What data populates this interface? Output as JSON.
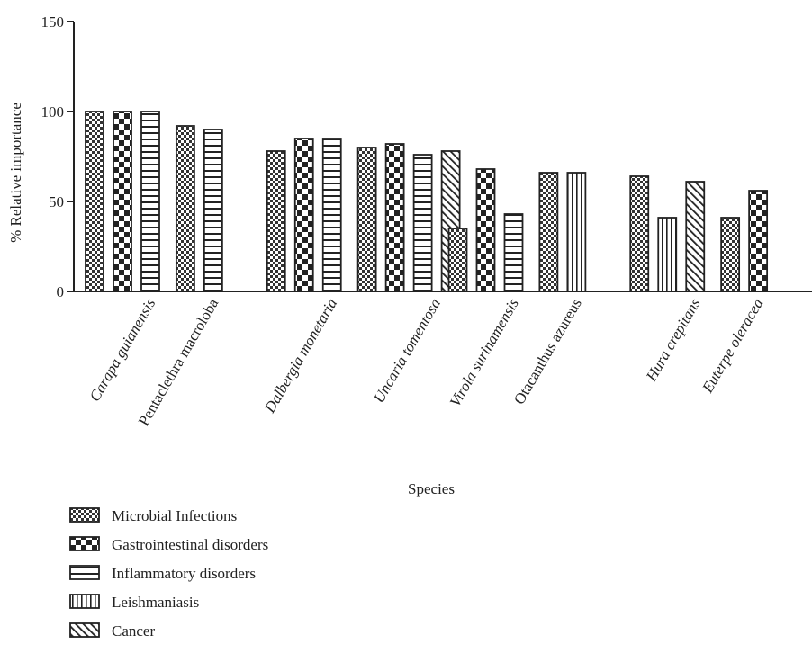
{
  "chart_data": {
    "type": "bar",
    "xlabel": "Species",
    "ylabel": "% Relative importance",
    "ylim": [
      0,
      150
    ],
    "yticks": [
      0,
      50,
      100,
      150
    ],
    "grid": false,
    "legend_position": "bottom-left",
    "categories": [
      "Carapa guianensis",
      "Pentaclethra macroloba",
      "Dalbergia monetaria",
      "Uncaria tomentosa",
      "Virola surinamensis",
      "Otacanthus azureus",
      "Hura crepitans",
      "Euterpe oleracea"
    ],
    "category_italic": [
      true,
      false,
      true,
      true,
      true,
      false,
      true,
      true
    ],
    "series": [
      {
        "name": "Microbial Infections",
        "pattern": "fine-checker"
      },
      {
        "name": "Gastrointestinal disorders",
        "pattern": "coarse-checker"
      },
      {
        "name": "Inflammatory disorders",
        "pattern": "horizontal-lines"
      },
      {
        "name": "Leishmaniasis",
        "pattern": "vertical-lines"
      },
      {
        "name": "Cancer",
        "pattern": "diagonal-lines"
      }
    ],
    "bar_groups": [
      {
        "category": "Carapa guianensis",
        "bars": [
          {
            "series": 0,
            "value": 100
          },
          {
            "series": 1,
            "value": 100
          },
          {
            "series": 2,
            "value": 100
          }
        ]
      },
      {
        "category": "Pentaclethra macroloba",
        "bars": [
          {
            "series": 0,
            "value": 92
          },
          {
            "series": 2,
            "value": 90
          }
        ]
      },
      {
        "category": "Dalbergia monetaria",
        "bars": [
          {
            "series": 0,
            "value": 78
          },
          {
            "series": 1,
            "value": 85
          },
          {
            "series": 2,
            "value": 85
          }
        ]
      },
      {
        "category": "Uncaria tomentosa",
        "bars": [
          {
            "series": 0,
            "value": 80
          },
          {
            "series": 1,
            "value": 82
          },
          {
            "series": 2,
            "value": 76
          },
          {
            "series": 4,
            "value": 78
          }
        ]
      },
      {
        "category": "Virola surinamensis",
        "bars": [
          {
            "series": 0,
            "value": 35
          },
          {
            "series": 1,
            "value": 68
          },
          {
            "series": 2,
            "value": 43
          }
        ]
      },
      {
        "category": "Otacanthus azureus",
        "bars": [
          {
            "series": 0,
            "value": 66
          },
          {
            "series": 3,
            "value": 66
          }
        ]
      },
      {
        "category": "Hura crepitans",
        "bars": [
          {
            "series": 0,
            "value": 64
          },
          {
            "series": 3,
            "value": 41
          },
          {
            "series": 4,
            "value": 61
          }
        ]
      },
      {
        "category": "Euterpe oleracea",
        "bars": [
          {
            "series": 0,
            "value": 41
          },
          {
            "series": 1,
            "value": 56
          }
        ]
      }
    ]
  }
}
